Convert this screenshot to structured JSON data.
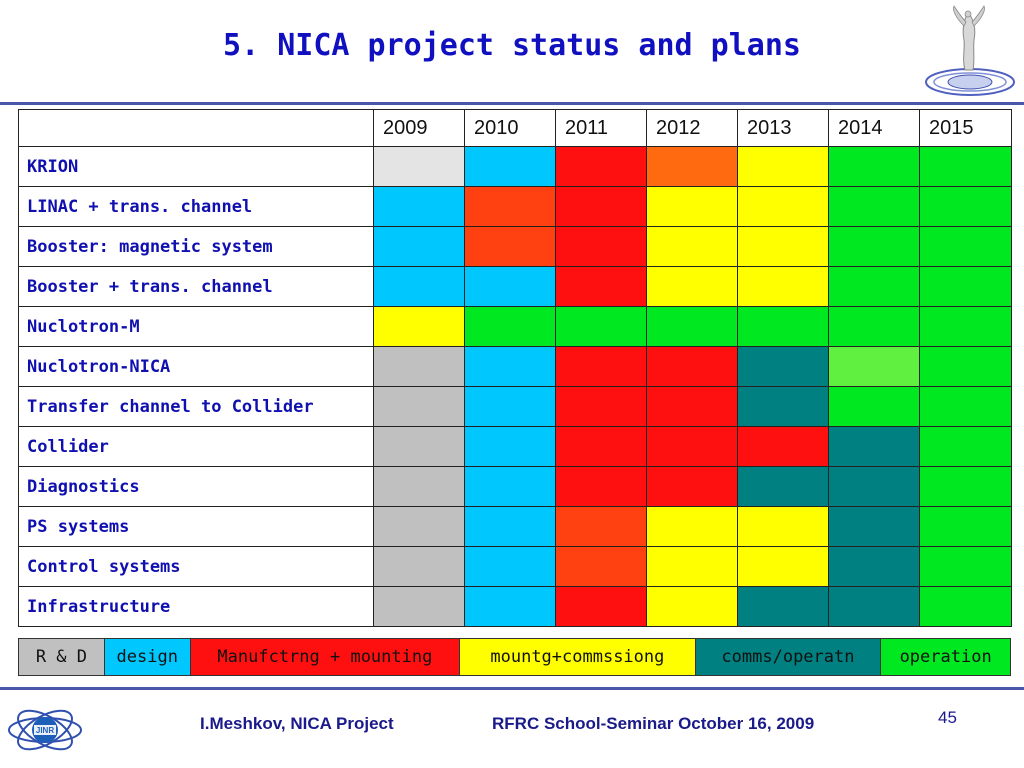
{
  "title": "5. NICA project status and plans",
  "years": [
    "2009",
    "2010",
    "2011",
    "2012",
    "2013",
    "2014",
    "2015"
  ],
  "colors": {
    "rnd": "#c0c0c0",
    "rnd_light": "#e4e4e4",
    "design": "#00c8ff",
    "manufacturing": "#ff1010",
    "manufacturing_alt": "#ff4010",
    "orange": "#ff6a10",
    "mounting": "#ffff00",
    "comms": "#008080",
    "operation": "#00e820",
    "operation_light": "#60f040"
  },
  "rows": [
    {
      "label": "KRION",
      "cells": [
        "rnd_light",
        "design",
        "manufacturing",
        "orange",
        "mounting",
        "operation",
        "operation"
      ]
    },
    {
      "label": "LINAC + trans. channel",
      "cells": [
        "design",
        "manufacturing_alt",
        "manufacturing",
        "mounting",
        "mounting",
        "operation",
        "operation"
      ]
    },
    {
      "label": "Booster: magnetic system",
      "cells": [
        "design",
        "manufacturing_alt",
        "manufacturing",
        "mounting",
        "mounting",
        "operation",
        "operation"
      ]
    },
    {
      "label": "Booster + trans. channel",
      "cells": [
        "design",
        "design",
        "manufacturing",
        "mounting",
        "mounting",
        "operation",
        "operation"
      ]
    },
    {
      "label": "Nuclotron-M",
      "cells": [
        "mounting",
        "operation",
        "operation",
        "operation",
        "operation",
        "operation",
        "operation"
      ]
    },
    {
      "label": "Nuclotron-NICA",
      "cells": [
        "rnd",
        "design",
        "manufacturing",
        "manufacturing",
        "comms",
        "operation_light",
        "operation"
      ]
    },
    {
      "label": "Transfer channel to Collider",
      "cells": [
        "rnd",
        "design",
        "manufacturing",
        "manufacturing",
        "comms",
        "operation",
        "operation"
      ]
    },
    {
      "label": "Collider",
      "cells": [
        "rnd",
        "design",
        "manufacturing",
        "manufacturing",
        "manufacturing",
        "comms",
        "operation"
      ]
    },
    {
      "label": "Diagnostics",
      "cells": [
        "rnd",
        "design",
        "manufacturing",
        "manufacturing",
        "comms",
        "comms",
        "operation"
      ]
    },
    {
      "label": "PS systems",
      "cells": [
        "rnd",
        "design",
        "manufacturing_alt",
        "mounting",
        "mounting",
        "comms",
        "operation"
      ]
    },
    {
      "label": "Control systems",
      "cells": [
        "rnd",
        "design",
        "manufacturing_alt",
        "mounting",
        "mounting",
        "comms",
        "operation"
      ]
    },
    {
      "label": "Infrastructure",
      "cells": [
        "rnd",
        "design",
        "manufacturing",
        "mounting",
        "comms",
        "comms",
        "operation"
      ]
    }
  ],
  "legend": [
    {
      "label": "R & D",
      "color": "rnd"
    },
    {
      "label": "design",
      "color": "design"
    },
    {
      "label": "Manufctrng + mounting",
      "color": "manufacturing"
    },
    {
      "label": "mountg+commssiong",
      "color": "mounting"
    },
    {
      "label": "comms/operatn",
      "color": "comms"
    },
    {
      "label": "operation",
      "color": "operation"
    }
  ],
  "footer": {
    "author": "I.Meshkov, NICA Project",
    "event": "RFRC School-Seminar October 16, 2009",
    "page": "45"
  },
  "logos": {
    "top_right": "nica-logo-icon",
    "bottom_left": "jinr-logo-icon"
  }
}
